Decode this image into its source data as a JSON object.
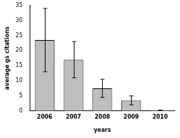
{
  "chart_data": {
    "type": "bar",
    "categories": [
      "2006",
      "2007",
      "2008",
      "2009",
      "2010"
    ],
    "values": [
      23.5,
      17,
      7.5,
      3.5,
      0.2
    ],
    "errors": [
      10.5,
      6,
      3,
      1.5,
      0.1
    ],
    "color": "#bfbfbf",
    "x_label": "years",
    "y_label": "average gs citations",
    "ylim": [
      0,
      35
    ],
    "yticks": [
      0,
      5,
      10,
      15,
      20,
      25,
      30,
      35
    ],
    "grid": false
  }
}
